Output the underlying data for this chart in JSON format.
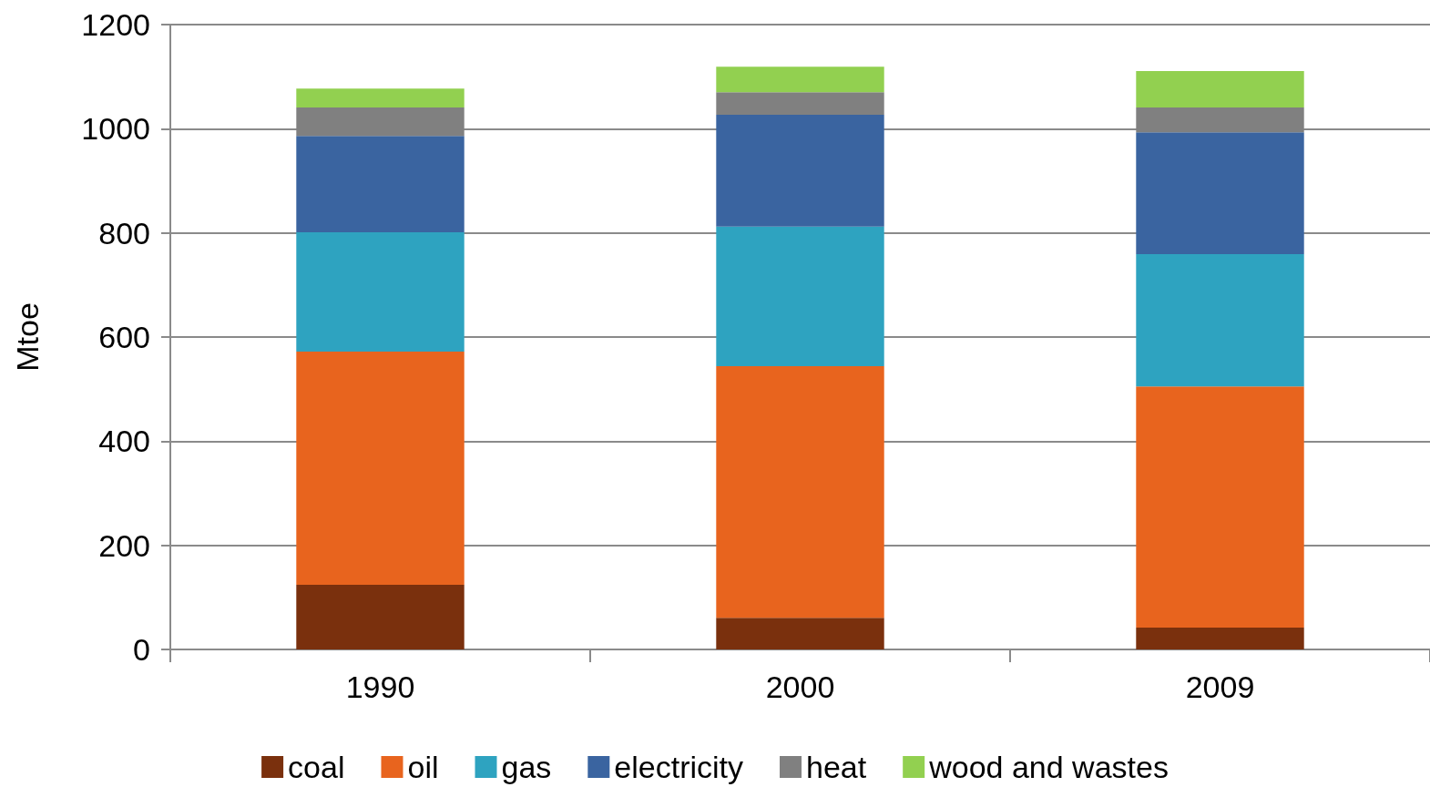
{
  "chart_data": {
    "type": "bar",
    "stacked": true,
    "ylabel": "Mtoe",
    "categories": [
      "1990",
      "2000",
      "2009"
    ],
    "series": [
      {
        "name": "coal",
        "color": "#7a300d",
        "values": [
          124,
          61,
          42
        ]
      },
      {
        "name": "oil",
        "color": "#e8641e",
        "values": [
          448,
          483,
          463
        ]
      },
      {
        "name": "gas",
        "color": "#2ea3c0",
        "values": [
          229,
          268,
          254
        ]
      },
      {
        "name": "electricity",
        "color": "#3a64a0",
        "values": [
          185,
          215,
          234
        ]
      },
      {
        "name": "heat",
        "color": "#808080",
        "values": [
          55,
          43,
          48
        ]
      },
      {
        "name": "wood and wastes",
        "color": "#92d050",
        "values": [
          36,
          49,
          70
        ]
      }
    ],
    "ylim": [
      0,
      1200
    ],
    "yticks": [
      0,
      200,
      400,
      600,
      800,
      1000,
      1200
    ],
    "grid": "y",
    "legend": "bottom"
  }
}
